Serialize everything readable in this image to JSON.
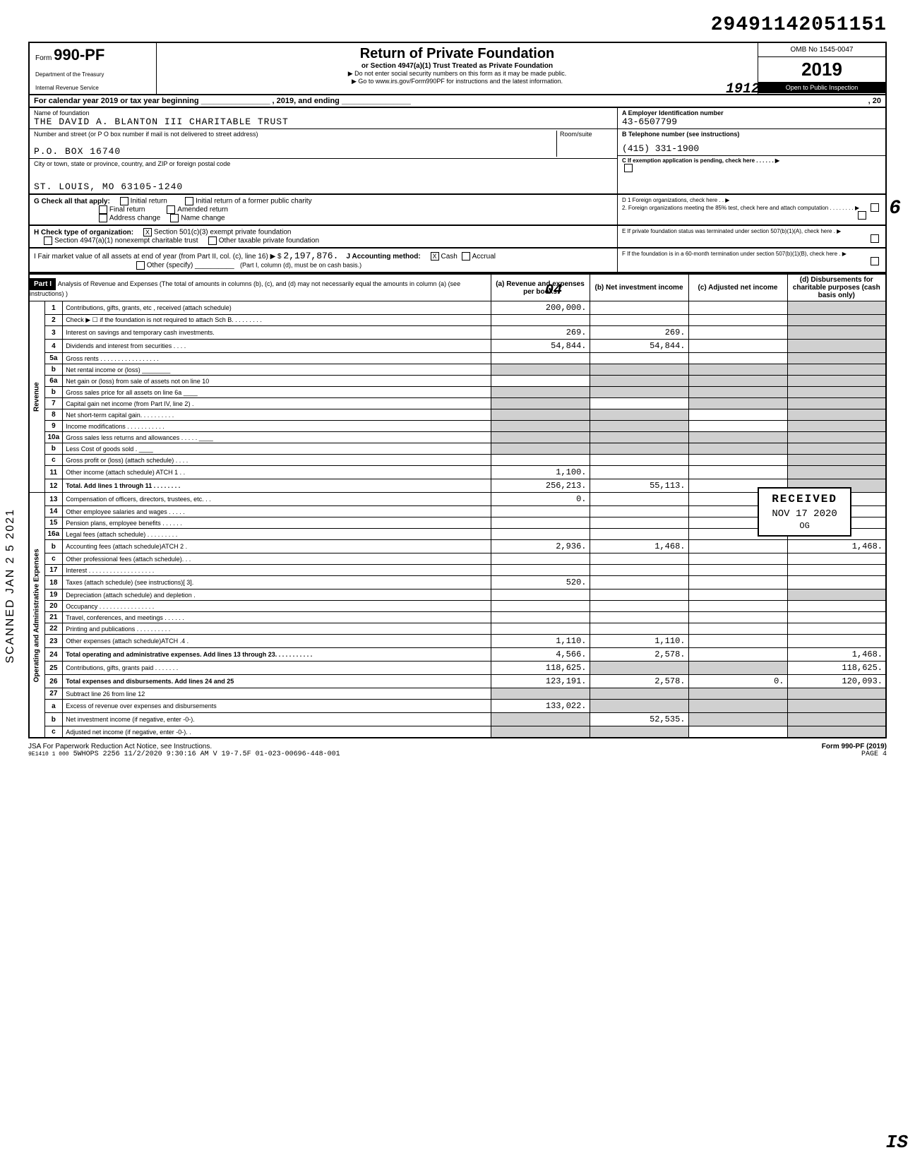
{
  "top_number": "29491142051151",
  "form": {
    "number": "990-PF",
    "prefix": "Form",
    "dept1": "Department of the Treasury",
    "dept2": "Internal Revenue Service",
    "title": "Return of Private Foundation",
    "subtitle": "or Section 4947(a)(1) Trust Treated as Private Foundation",
    "warn": "▶ Do not enter social security numbers on this form as it may be made public.",
    "goto": "▶ Go to www.irs.gov/Form990PF for instructions and the latest information.",
    "omb": "OMB No 1545-0047",
    "year": "2019",
    "inspect": "Open to Public Inspection"
  },
  "cal_year": {
    "left": "For calendar year 2019 or tax year beginning",
    "mid": ", 2019, and ending",
    "right": ", 20"
  },
  "entity": {
    "name_label": "Name of foundation",
    "name": "THE DAVID A. BLANTON III CHARITABLE TRUST",
    "addr_label": "Number and street (or P O box number if mail is not delivered to street address)",
    "addr": "P.O. BOX 16740",
    "room_label": "Room/suite",
    "city_label": "City or town, state or province, country, and ZIP or foreign postal code",
    "city": "ST. LOUIS, MO 63105-1240",
    "ein_label": "A Employer Identification number",
    "ein": "43-6507799",
    "phone_label": "B Telephone number (see instructions)",
    "phone": "(415) 331-1900",
    "c_label": "C If exemption application is pending, check here . . . . . . ▶"
  },
  "g": {
    "label": "G Check all that apply:",
    "opts": [
      "Initial return",
      "Final return",
      "Address change",
      "Initial return of a former public charity",
      "Amended return",
      "Name change"
    ]
  },
  "h": {
    "label": "H Check type of organization:",
    "o1": "Section 501(c)(3) exempt private foundation",
    "o2": "Section 4947(a)(1) nonexempt charitable trust",
    "o3": "Other taxable private foundation"
  },
  "d": {
    "d1": "D 1 Foreign organizations, check here . . ▶",
    "d2": "2. Foreign organizations meeting the 85% test, check here and attach computation . . . . . . . . ▶",
    "e": "E If private foundation status was terminated under section 507(b)(1)(A), check here . ▶",
    "f": "F If the foundation is in a 60-month termination under section 507(b)(1)(B), check here . ▶"
  },
  "i": {
    "label": "I Fair market value of all assets at end of year (from Part II, col. (c), line 16) ▶ $",
    "val": "2,197,876.",
    "j_label": "J Accounting method:",
    "j_cash": "Cash",
    "j_accrual": "Accrual",
    "j_other": "Other (specify)",
    "note": "(Part I, column (d), must be on cash basis.)"
  },
  "part1": {
    "tag": "Part I",
    "title": "Analysis of Revenue and Expenses (The total of amounts in columns (b), (c), and (d) may not necessarily equal the amounts in column (a) (see instructions) )",
    "cols": {
      "a": "(a) Revenue and expenses per books",
      "b": "(b) Net investment income",
      "c": "(c) Adjusted net income",
      "d": "(d) Disbursements for charitable purposes (cash basis only)"
    }
  },
  "sections": {
    "revenue": "Revenue",
    "opadmin": "Operating and Administrative Expenses"
  },
  "rows": [
    {
      "sec": "rev",
      "n": "1",
      "d": "Contributions, gifts, grants, etc , received (attach schedule)",
      "a": "200,000.",
      "b": "",
      "c": "",
      "dd": "",
      "shade_d": true
    },
    {
      "sec": "rev",
      "n": "2",
      "d": "Check ▶ ☐  if the foundation is not required to attach Sch B. . . . . . . . .",
      "a": "",
      "b": "",
      "c": "",
      "dd": "",
      "shade_d": true
    },
    {
      "sec": "rev",
      "n": "3",
      "d": "Interest on savings and temporary cash investments.",
      "a": "269.",
      "b": "269.",
      "c": "",
      "dd": "",
      "shade_d": true
    },
    {
      "sec": "rev",
      "n": "4",
      "d": "Dividends and interest from securities . . . .",
      "a": "54,844.",
      "b": "54,844.",
      "c": "",
      "dd": "",
      "shade_d": true
    },
    {
      "sec": "rev",
      "n": "5a",
      "d": "Gross rents . . . . . . . . . . . . . . . . .",
      "a": "",
      "b": "",
      "c": "",
      "dd": "",
      "shade_d": true
    },
    {
      "sec": "rev",
      "n": "b",
      "d": "Net rental income or (loss) ________",
      "a": "",
      "b": "",
      "c": "",
      "dd": "",
      "shade_all": true
    },
    {
      "sec": "rev",
      "n": "6a",
      "d": "Net gain or (loss) from sale of assets not on line 10",
      "a": "",
      "b": "",
      "c": "",
      "dd": "",
      "shade_bcd": true
    },
    {
      "sec": "rev",
      "n": "b",
      "d": "Gross sales price for all assets on line 6a ____",
      "a": "",
      "b": "",
      "c": "",
      "dd": "",
      "shade_all": true
    },
    {
      "sec": "rev",
      "n": "7",
      "d": "Capital gain net income (from Part IV, line 2) .",
      "a": "",
      "b": "",
      "c": "",
      "dd": "",
      "shade_a": true,
      "shade_cd": true
    },
    {
      "sec": "rev",
      "n": "8",
      "d": "Net short-term capital gain. . . . . . . . . .",
      "a": "",
      "b": "",
      "c": "",
      "dd": "",
      "shade_ab": true,
      "shade_d": true
    },
    {
      "sec": "rev",
      "n": "9",
      "d": "Income modifications . . . . . . . . . . .",
      "a": "",
      "b": "",
      "c": "",
      "dd": "",
      "shade_ab": true,
      "shade_d": true
    },
    {
      "sec": "rev",
      "n": "10a",
      "d": "Gross sales less returns and allowances . . . . . ____",
      "a": "",
      "b": "",
      "c": "",
      "dd": "",
      "shade_all": true
    },
    {
      "sec": "rev",
      "n": "b",
      "d": "Less Cost of goods sold  . ____",
      "a": "",
      "b": "",
      "c": "",
      "dd": "",
      "shade_all": true
    },
    {
      "sec": "rev",
      "n": "c",
      "d": "Gross profit or (loss) (attach schedule) . . . .",
      "a": "",
      "b": "",
      "c": "",
      "dd": "",
      "shade_d": true
    },
    {
      "sec": "rev",
      "n": "11",
      "d": "Other income (attach schedule) ATCH 1 . .",
      "a": "1,100.",
      "b": "",
      "c": "",
      "dd": "",
      "shade_d": true
    },
    {
      "sec": "rev",
      "n": "12",
      "d": "Total. Add lines 1 through 11 . . . . . . . .",
      "a": "256,213.",
      "b": "55,113.",
      "c": "",
      "dd": "",
      "bold": true,
      "shade_d": true
    },
    {
      "sec": "op",
      "n": "13",
      "d": "Compensation of officers, directors, trustees, etc. . .",
      "a": "0.",
      "b": "",
      "c": "",
      "dd": ""
    },
    {
      "sec": "op",
      "n": "14",
      "d": "Other employee salaries and wages . . . . .",
      "a": "",
      "b": "",
      "c": "",
      "dd": ""
    },
    {
      "sec": "op",
      "n": "15",
      "d": "Pension plans, employee benefits . . . . . .",
      "a": "",
      "b": "",
      "c": "",
      "dd": ""
    },
    {
      "sec": "op",
      "n": "16a",
      "d": "Legal fees (attach schedule) . . . . . . . . .",
      "a": "",
      "b": "",
      "c": "",
      "dd": ""
    },
    {
      "sec": "op",
      "n": "b",
      "d": "Accounting fees (attach schedule)ATCH 2 .",
      "a": "2,936.",
      "b": "1,468.",
      "c": "",
      "dd": "1,468."
    },
    {
      "sec": "op",
      "n": "c",
      "d": "Other professional fees (attach schedule). . .",
      "a": "",
      "b": "",
      "c": "",
      "dd": ""
    },
    {
      "sec": "op",
      "n": "17",
      "d": "Interest . . . . . . . . . . . . . . . . . . .",
      "a": "",
      "b": "",
      "c": "",
      "dd": ""
    },
    {
      "sec": "op",
      "n": "18",
      "d": "Taxes (attach schedule) (see instructions)[ 3].",
      "a": "520.",
      "b": "",
      "c": "",
      "dd": ""
    },
    {
      "sec": "op",
      "n": "19",
      "d": "Depreciation (attach schedule) and depletion .",
      "a": "",
      "b": "",
      "c": "",
      "dd": "",
      "shade_d": true
    },
    {
      "sec": "op",
      "n": "20",
      "d": "Occupancy . . . . . . . . . . . . . . . .",
      "a": "",
      "b": "",
      "c": "",
      "dd": ""
    },
    {
      "sec": "op",
      "n": "21",
      "d": "Travel, conferences, and meetings . . . . . .",
      "a": "",
      "b": "",
      "c": "",
      "dd": ""
    },
    {
      "sec": "op",
      "n": "22",
      "d": "Printing and publications . . . . . . . . . .",
      "a": "",
      "b": "",
      "c": "",
      "dd": ""
    },
    {
      "sec": "op",
      "n": "23",
      "d": "Other expenses (attach schedule)ATCH .4 .",
      "a": "1,110.",
      "b": "1,110.",
      "c": "",
      "dd": ""
    },
    {
      "sec": "op",
      "n": "24",
      "d": "Total operating and administrative expenses. Add lines 13 through 23. . . . . . . . . . .",
      "a": "4,566.",
      "b": "2,578.",
      "c": "",
      "dd": "1,468.",
      "bold": true
    },
    {
      "sec": "op",
      "n": "25",
      "d": "Contributions, gifts, grants paid . . . . . . .",
      "a": "118,625.",
      "b": "",
      "c": "",
      "dd": "118,625.",
      "shade_bc": true
    },
    {
      "sec": "op",
      "n": "26",
      "d": "Total expenses and disbursements. Add lines 24 and 25",
      "a": "123,191.",
      "b": "2,578.",
      "c": "0.",
      "dd": "120,093.",
      "bold": true
    },
    {
      "sec": "end",
      "n": "27",
      "d": "Subtract line 26 from line 12",
      "a": "",
      "b": "",
      "c": "",
      "dd": "",
      "shade_all": true
    },
    {
      "sec": "end",
      "n": "a",
      "d": "Excess of revenue over expenses and disbursements",
      "a": "133,022.",
      "b": "",
      "c": "",
      "dd": "",
      "shade_bcd": true
    },
    {
      "sec": "end",
      "n": "b",
      "d": "Net investment income (if negative, enter -0-).",
      "a": "",
      "b": "52,535.",
      "c": "",
      "dd": "",
      "shade_a": true,
      "shade_cd": true
    },
    {
      "sec": "end",
      "n": "c",
      "d": "Adjusted net income (if negative, enter -0-). .",
      "a": "",
      "b": "",
      "c": "",
      "dd": "",
      "shade_ab": true,
      "shade_d": true
    }
  ],
  "stamp": {
    "r1": "RECEIVED",
    "r2": "NOV 17 2020",
    "r3": "OG"
  },
  "footer": {
    "jsa": "JSA For Paperwork Reduction Act Notice, see Instructions.",
    "code": "9E1410 1 000",
    "line": "5WHOPS 2256  11/2/2020   9:30:16 AM  V 19-7.5F            01-023-00696-448-001",
    "form": "Form 990-PF (2019)",
    "page": "PAGE 4"
  },
  "handwritten": {
    "h1": "04",
    "h2": "1912",
    "h3": "6",
    "h4": "IS",
    "scan": "SCANNED JAN 2 5 2021"
  }
}
